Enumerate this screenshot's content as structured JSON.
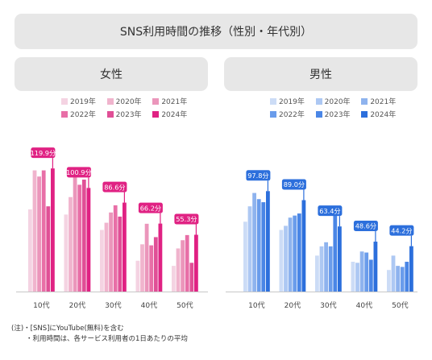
{
  "title": "SNS利用時間の推移（性別・年代別）",
  "chart_data": [
    {
      "type": "bar",
      "panel_title": "女性",
      "categories": [
        "10代",
        "20代",
        "30代",
        "40代",
        "50代"
      ],
      "series": [
        {
          "name": "2019年",
          "color": "#f4d3e2",
          "values": [
            80,
            75,
            60,
            30,
            25
          ]
        },
        {
          "name": "2020年",
          "color": "#f0b4cd",
          "values": [
            118,
            92,
            67,
            46,
            42
          ]
        },
        {
          "name": "2021年",
          "color": "#eb96bb",
          "values": [
            112,
            114,
            77,
            66,
            50
          ]
        },
        {
          "name": "2022年",
          "color": "#e86fa7",
          "values": [
            118,
            104,
            84,
            45,
            55
          ]
        },
        {
          "name": "2023年",
          "color": "#e04f96",
          "values": [
            83,
            109,
            73,
            53,
            28
          ]
        },
        {
          "name": "2024年",
          "color": "#e02283",
          "values": [
            119.9,
            100.9,
            86.6,
            66.2,
            55.3
          ]
        }
      ],
      "data_labels": [
        "119.9分",
        "100.9分",
        "86.6分",
        "66.2分",
        "55.3分"
      ],
      "accent": "#e02283",
      "ylim": [
        0,
        150
      ]
    },
    {
      "type": "bar",
      "panel_title": "男性",
      "categories": [
        "10代",
        "20代",
        "30代",
        "40代",
        "50代"
      ],
      "series": [
        {
          "name": "2019年",
          "color": "#ccdcf6",
          "values": [
            68,
            60,
            35,
            29,
            21
          ]
        },
        {
          "name": "2020年",
          "color": "#adc8f3",
          "values": [
            83,
            64,
            44,
            28,
            35
          ]
        },
        {
          "name": "2021年",
          "color": "#8eb3ee",
          "values": [
            96,
            72,
            48,
            39,
            25
          ]
        },
        {
          "name": "2022年",
          "color": "#6a9ceb",
          "values": [
            90,
            74,
            44,
            38,
            24
          ]
        },
        {
          "name": "2023年",
          "color": "#4a86e6",
          "values": [
            87,
            76,
            75,
            31,
            29
          ]
        },
        {
          "name": "2024年",
          "color": "#2c6fdc",
          "values": [
            97.8,
            89.0,
            63.4,
            48.6,
            44.2
          ]
        }
      ],
      "data_labels": [
        "97.8分",
        "89.0分",
        "63.4分",
        "48.6分",
        "44.2分"
      ],
      "accent": "#2c6fdc",
      "ylim": [
        0,
        150
      ]
    }
  ],
  "notes": [
    "(注)・[SNS]にYouTube(無料)を含む",
    "・利用時間は、各サービス利用者の1日あたりの平均"
  ]
}
